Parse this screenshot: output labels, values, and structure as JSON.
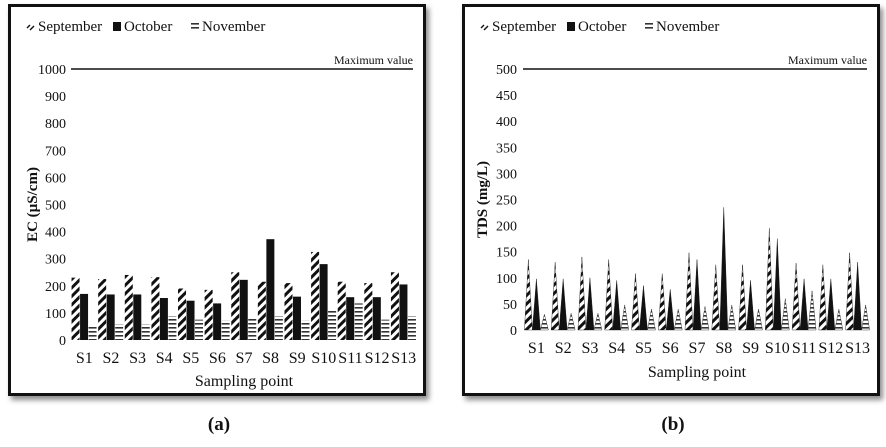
{
  "chart_data": [
    {
      "type": "bar",
      "panel_label": "(a)",
      "ylabel": "EC (µS/cm)",
      "xlabel": "Sampling point",
      "ylim": [
        0,
        1000
      ],
      "yticks": [
        "0",
        "100",
        "200",
        "300",
        "400",
        "500",
        "600",
        "700",
        "800",
        "900",
        "1000"
      ],
      "categories": [
        "S1",
        "S2",
        "S3",
        "S4",
        "S5",
        "S6",
        "S7",
        "S8",
        "S9",
        "S10",
        "S11",
        "S12",
        "S13"
      ],
      "series": [
        {
          "name": "September",
          "values": [
            230,
            225,
            240,
            232,
            190,
            185,
            250,
            215,
            210,
            325,
            215,
            210,
            250
          ]
        },
        {
          "name": "October",
          "values": [
            170,
            168,
            168,
            155,
            145,
            135,
            222,
            372,
            160,
            280,
            158,
            158,
            205
          ]
        },
        {
          "name": "November",
          "values": [
            55,
            58,
            58,
            88,
            75,
            72,
            82,
            88,
            72,
            110,
            135,
            75,
            88
          ]
        }
      ],
      "reference_line": {
        "label": "Maximum value",
        "value": 1000
      },
      "legend_position": "top-left",
      "grid": false
    },
    {
      "type": "bar",
      "panel_label": "(b)",
      "ylabel": "TDS (mg/L)",
      "xlabel": "Sampling point",
      "ylim": [
        0,
        500
      ],
      "yticks": [
        "0",
        "50",
        "100",
        "150",
        "200",
        "250",
        "300",
        "350",
        "400",
        "450",
        "500"
      ],
      "categories": [
        "S1",
        "S2",
        "S3",
        "S4",
        "S5",
        "S6",
        "S7",
        "S8",
        "S9",
        "S10",
        "S11",
        "S12",
        "S13"
      ],
      "series": [
        {
          "name": "September",
          "values": [
            135,
            130,
            140,
            135,
            108,
            108,
            148,
            125,
            125,
            195,
            128,
            125,
            148
          ]
        },
        {
          "name": "October",
          "values": [
            98,
            98,
            100,
            95,
            85,
            78,
            135,
            235,
            95,
            175,
            98,
            98,
            130
          ]
        },
        {
          "name": "November",
          "values": [
            30,
            32,
            32,
            48,
            40,
            40,
            45,
            48,
            40,
            60,
            75,
            40,
            48
          ]
        }
      ],
      "reference_line": {
        "label": "Maximum value",
        "value": 500
      },
      "legend_position": "top-left",
      "grid": false
    }
  ]
}
